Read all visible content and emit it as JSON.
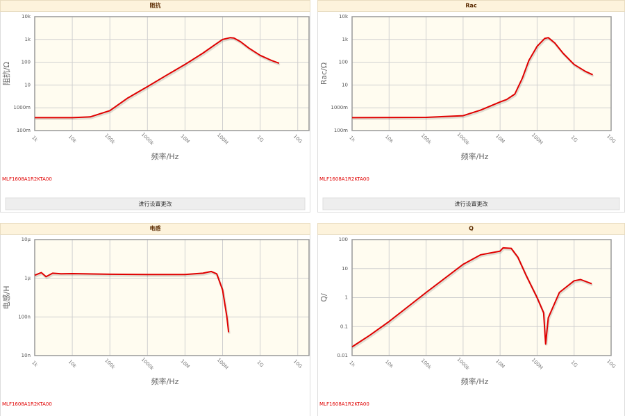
{
  "chart_data": [
    {
      "type": "line",
      "title": "阻抗",
      "x_label": "频率/Hz",
      "y_label": "阻抗/Ω",
      "log_x": true,
      "log_y": true,
      "grid": true,
      "x": [
        1000,
        10000,
        30000,
        100000,
        300000,
        1000000,
        3000000,
        10000000,
        30000000,
        60000000,
        100000000,
        160000000,
        200000000,
        300000000,
        500000000,
        1000000000,
        2000000000,
        3200000000
      ],
      "series": [
        {
          "color": "#e00000",
          "values": [
            0.37,
            0.37,
            0.4,
            0.75,
            2.7,
            8.5,
            25,
            80,
            250,
            560,
            1000,
            1200,
            1150,
            800,
            420,
            200,
            120,
            90
          ]
        }
      ],
      "xlim": [
        1000,
        20000000000
      ],
      "xticks": [
        {
          "value": 1000,
          "label": "1k"
        },
        {
          "value": 10000,
          "label": "10k"
        },
        {
          "value": 100000,
          "label": "100k"
        },
        {
          "value": 1000000,
          "label": "1000k"
        },
        {
          "value": 10000000,
          "label": "10M"
        },
        {
          "value": 100000000,
          "label": "100M"
        },
        {
          "value": 1000000000,
          "label": "1G"
        },
        {
          "value": 10000000000,
          "label": "10G"
        }
      ],
      "ylim": [
        0.1,
        10000
      ],
      "yticks": [
        {
          "value": 0.1,
          "label": "100m"
        },
        {
          "value": 1,
          "label": "1000m"
        },
        10,
        100,
        {
          "value": 1000,
          "label": "1k"
        },
        {
          "value": 10000,
          "label": "10k"
        }
      ]
    },
    {
      "type": "line",
      "title": "Rac",
      "x_label": "频率/Hz",
      "y_label": "Rac/Ω",
      "log_x": true,
      "log_y": true,
      "grid": true,
      "x": [
        1000,
        100000,
        1000000,
        3000000,
        10000000,
        15000000,
        25000000,
        40000000,
        60000000,
        100000000,
        160000000,
        200000000,
        300000000,
        500000000,
        1000000000,
        2000000000,
        3200000000
      ],
      "series": [
        {
          "color": "#e00000",
          "values": [
            0.37,
            0.38,
            0.45,
            0.8,
            1.8,
            2.3,
            4,
            20,
            120,
            500,
            1100,
            1200,
            700,
            250,
            80,
            40,
            28
          ]
        }
      ],
      "xlim": [
        1000,
        10000000000
      ],
      "xticks": [
        {
          "value": 1000,
          "label": "1k"
        },
        {
          "value": 10000,
          "label": "10k"
        },
        {
          "value": 100000,
          "label": "100k"
        },
        {
          "value": 1000000,
          "label": "1000k"
        },
        {
          "value": 10000000,
          "label": "10M"
        },
        {
          "value": 100000000,
          "label": "100M"
        },
        {
          "value": 1000000000,
          "label": "1G"
        },
        {
          "value": 10000000000,
          "label": "10G"
        }
      ],
      "ylim": [
        0.1,
        10000
      ],
      "yticks": [
        {
          "value": 0.1,
          "label": "100m"
        },
        {
          "value": 1,
          "label": "1000m"
        },
        10,
        100,
        {
          "value": 1000,
          "label": "1k"
        },
        {
          "value": 10000,
          "label": "10k"
        }
      ]
    },
    {
      "type": "line",
      "title": "电感",
      "x_label": "频率/Hz",
      "y_label": "电感/H",
      "log_x": true,
      "log_y": true,
      "grid": true,
      "x": [
        1000,
        1500,
        2000,
        3000,
        5000,
        10000,
        100000,
        1000000,
        10000000,
        30000000,
        50000000,
        70000000,
        100000000,
        130000000,
        145000000
      ],
      "series": [
        {
          "color": "#e00000",
          "values": [
            1.2e-06,
            1.4e-06,
            1.1e-06,
            1.35e-06,
            1.3e-06,
            1.32e-06,
            1.27e-06,
            1.25e-06,
            1.25e-06,
            1.35e-06,
            1.5e-06,
            1.3e-06,
            5e-07,
            1e-07,
            4e-08
          ]
        }
      ],
      "xlim": [
        1000,
        20000000000
      ],
      "xticks": [
        {
          "value": 1000,
          "label": "1k"
        },
        {
          "value": 10000,
          "label": "10k"
        },
        {
          "value": 100000,
          "label": "100k"
        },
        {
          "value": 1000000,
          "label": "1000k"
        },
        {
          "value": 10000000,
          "label": "10M"
        },
        {
          "value": 100000000,
          "label": "100M"
        },
        {
          "value": 1000000000,
          "label": "1G"
        },
        {
          "value": 10000000000,
          "label": "10G"
        }
      ],
      "ylim": [
        1e-08,
        1e-05
      ],
      "yticks": [
        {
          "value": 1e-08,
          "label": "10n"
        },
        {
          "value": 1e-07,
          "label": "100n"
        },
        {
          "value": 1e-06,
          "label": "1μ"
        },
        {
          "value": 1e-05,
          "label": "10μ"
        }
      ]
    },
    {
      "type": "line",
      "title": "Q",
      "x_label": "频率/Hz",
      "y_label": "Q/",
      "log_x": true,
      "log_y": true,
      "grid": true,
      "x": [
        1000,
        3000,
        10000,
        100000,
        1000000,
        3000000,
        10000000,
        12000000,
        20000000,
        30000000,
        50000000,
        100000000,
        150000000,
        170000000,
        200000000,
        400000000,
        1000000000,
        1500000000,
        3000000000
      ],
      "series": [
        {
          "color": "#e00000",
          "values": [
            0.02,
            0.05,
            0.15,
            1.5,
            14,
            30,
            40,
            52,
            50,
            25,
            6,
            1,
            0.3,
            0.025,
            0.2,
            1.5,
            3.8,
            4.2,
            3
          ]
        }
      ],
      "xlim": [
        1000,
        10000000000
      ],
      "xticks": [
        {
          "value": 1000,
          "label": "1k"
        },
        {
          "value": 10000,
          "label": "10k"
        },
        {
          "value": 100000,
          "label": "100k"
        },
        {
          "value": 1000000,
          "label": "1000k"
        },
        {
          "value": 10000000,
          "label": "10M"
        },
        {
          "value": 100000000,
          "label": "100M"
        },
        {
          "value": 1000000000,
          "label": "1G"
        },
        {
          "value": 10000000000,
          "label": "10G"
        }
      ],
      "ylim": [
        0.01,
        100
      ],
      "yticks": [
        0.01,
        0.1,
        1,
        10,
        100
      ]
    }
  ],
  "panels": [
    {
      "part_number": "MLF1608A1R2KTA00",
      "button": "进行设置更改"
    },
    {
      "part_number": "MLF1608A1R2KTA00",
      "button": "进行设置更改"
    },
    {
      "part_number": "MLF1608A1R2KTA00"
    },
    {
      "part_number": "MLF1608A1R2KTA00"
    }
  ]
}
